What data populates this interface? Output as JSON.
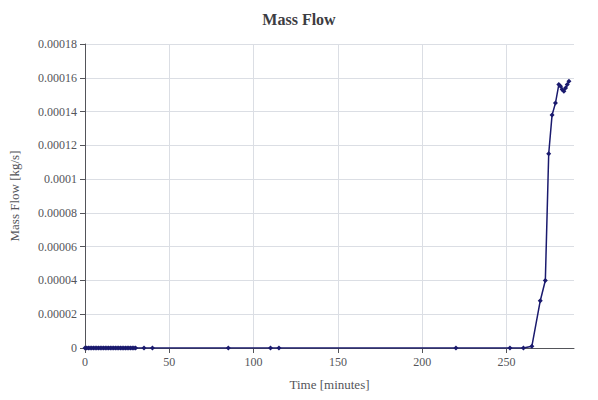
{
  "chart_data": {
    "type": "line",
    "title": "Mass Flow",
    "x_label": "Time [minutes]",
    "y_label": "Mass Flow [kg/s]",
    "x": [
      0,
      1,
      2,
      3,
      4,
      5,
      6,
      7,
      8,
      9,
      10,
      11,
      12,
      13,
      14,
      15,
      16,
      17,
      18,
      19,
      20,
      21,
      22,
      23,
      24,
      25,
      26,
      27,
      28,
      29,
      30,
      35,
      40,
      85,
      110,
      115,
      220,
      252,
      260,
      265,
      270,
      273,
      275,
      277,
      279,
      281,
      282,
      283,
      284,
      285,
      286,
      287
    ],
    "values": [
      0.0,
      0.0,
      0.0,
      0.0,
      0.0,
      0.0,
      0.0,
      0.0,
      0.0,
      0.0,
      0.0,
      0.0,
      0.0,
      0.0,
      0.0,
      0.0,
      0.0,
      0.0,
      0.0,
      0.0,
      0.0,
      0.0,
      0.0,
      0.0,
      0.0,
      0.0,
      0.0,
      0.0,
      0.0,
      0.0,
      0.0,
      0.0,
      0.0,
      0.0,
      0.0,
      0.0,
      0.0,
      0.0,
      0.0,
      1e-06,
      2.8e-05,
      4e-05,
      0.000115,
      0.000138,
      0.000145,
      0.000156,
      0.000155,
      0.000153,
      0.000152,
      0.000154,
      0.000156,
      0.000158
    ],
    "xlim": [
      0,
      290
    ],
    "ylim": [
      0,
      0.00018
    ],
    "xticks": [
      0,
      50,
      100,
      150,
      200,
      250
    ],
    "yticks": [
      0,
      2e-05,
      4e-05,
      6e-05,
      8e-05,
      0.0001,
      0.00012,
      0.00014,
      0.00016,
      0.00018
    ],
    "grid": true,
    "marker": "diamond",
    "color": "#1a1a6e"
  }
}
